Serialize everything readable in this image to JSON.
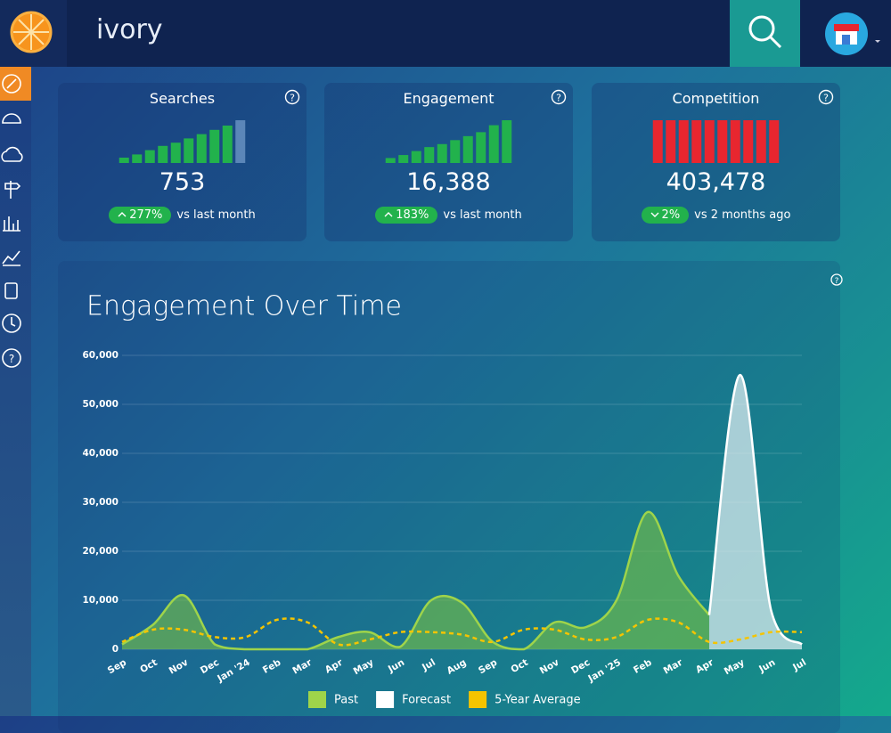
{
  "header": {
    "app_name": "ivory"
  },
  "cards": [
    {
      "title": "Searches",
      "value": "753",
      "change": "277%",
      "compare": "vs last month",
      "bars": {
        "values": [
          5,
          8,
          12,
          16,
          19,
          23,
          27,
          31,
          35,
          40
        ],
        "color": "#22b24c",
        "last_color": "#5b86b8"
      }
    },
    {
      "title": "Engagement",
      "value": "16,388",
      "change": "183%",
      "compare": "vs last month",
      "bars": {
        "values": [
          5,
          8,
          12,
          16,
          19,
          23,
          27,
          31,
          38,
          43
        ],
        "color": "#22b24c"
      }
    },
    {
      "title": "Competition",
      "value": "403,478",
      "change": "2%",
      "compare": "vs 2 months ago",
      "bars": {
        "values": [
          38,
          38,
          38,
          38,
          38,
          38,
          38,
          38,
          38,
          38
        ],
        "color": "#e8262f"
      }
    }
  ],
  "chart_data": {
    "type": "line",
    "title": "Engagement Over Time",
    "categories": [
      "Sep",
      "Oct",
      "Nov",
      "Dec",
      "Jan '24",
      "Feb",
      "Mar",
      "Apr",
      "May",
      "Jun",
      "Jul",
      "Aug",
      "Sep",
      "Oct",
      "Nov",
      "Dec",
      "Jan '25",
      "Feb",
      "Mar",
      "Apr",
      "May",
      "Jun",
      "Jul"
    ],
    "series": [
      {
        "name": "Past",
        "color": "#9fd44a",
        "fill": "rgba(118,190,70,0.62)",
        "values": [
          1000,
          5000,
          11000,
          1000,
          0,
          0,
          0,
          2500,
          3500,
          500,
          10000,
          9500,
          1500,
          0,
          5500,
          4500,
          10000,
          28000,
          15000,
          7000,
          null,
          null,
          null
        ]
      },
      {
        "name": "Forecast",
        "color": "#ffffff",
        "fill": "rgba(225,238,242,0.72)",
        "values": [
          null,
          null,
          null,
          null,
          null,
          null,
          null,
          null,
          null,
          null,
          null,
          null,
          null,
          null,
          null,
          null,
          null,
          null,
          null,
          7000,
          56000,
          8000,
          1000
        ]
      },
      {
        "name": "5-Year Average",
        "color": "#f5c400",
        "dashed": true,
        "values": [
          1500,
          4000,
          4000,
          2500,
          2500,
          6000,
          5500,
          1000,
          2000,
          3500,
          3500,
          3000,
          1500,
          4000,
          4000,
          2000,
          2500,
          6000,
          5500,
          1500,
          2000,
          3500,
          3500
        ]
      }
    ],
    "ylim": [
      0,
      60000
    ],
    "yticks": [
      0,
      {
        "value": 10000,
        "label": "10,000"
      },
      {
        "value": 20000,
        "label": "20,000"
      },
      {
        "value": 30000,
        "label": "30,000"
      },
      {
        "value": 40000,
        "label": "40,000"
      },
      {
        "value": 50000,
        "label": "50,000"
      },
      {
        "value": 60000,
        "label": "60,000"
      }
    ],
    "grid": true
  }
}
